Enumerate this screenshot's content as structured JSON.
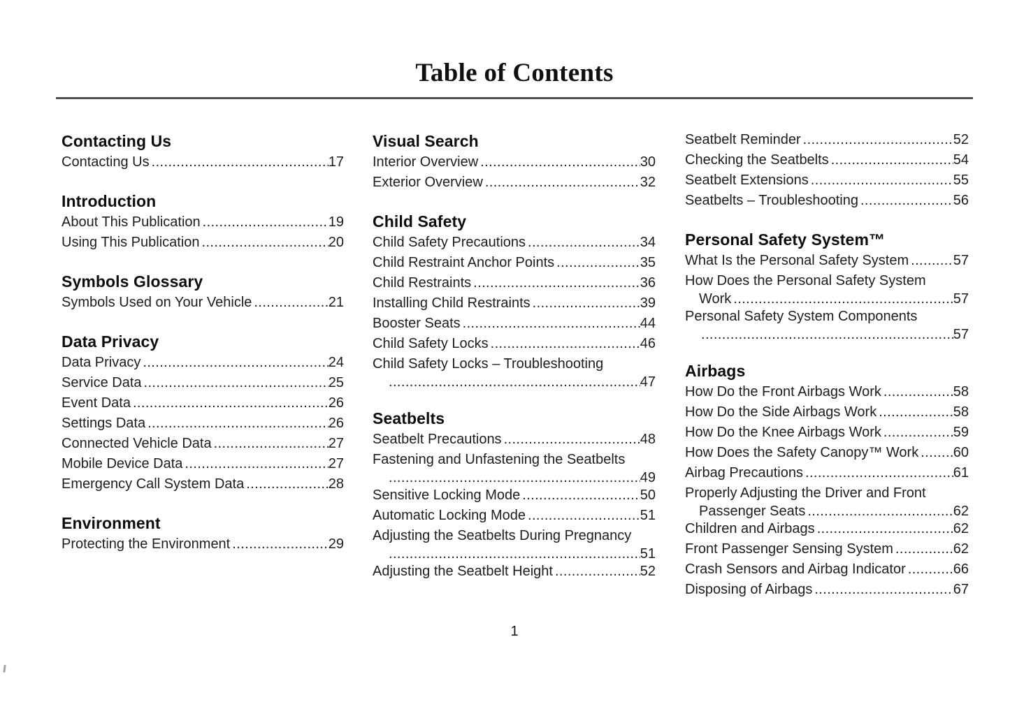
{
  "page": {
    "title": "Table of Contents",
    "page_number": "1"
  },
  "toc": {
    "columns": [
      {
        "sections": [
          {
            "heading": "Contacting Us",
            "entries": [
              {
                "label": "Contacting Us",
                "page": "17"
              }
            ]
          },
          {
            "heading": "Introduction",
            "entries": [
              {
                "label": "About This Publication",
                "page": "19"
              },
              {
                "label": "Using This Publication",
                "page": "20"
              }
            ]
          },
          {
            "heading": "Symbols Glossary",
            "entries": [
              {
                "label": "Symbols Used on Your Vehicle",
                "page": "21"
              }
            ]
          },
          {
            "heading": "Data Privacy",
            "entries": [
              {
                "label": "Data Privacy",
                "page": "24"
              },
              {
                "label": "Service Data",
                "page": "25"
              },
              {
                "label": "Event Data",
                "page": "26"
              },
              {
                "label": "Settings Data",
                "page": "26"
              },
              {
                "label": "Connected Vehicle Data",
                "page": "27"
              },
              {
                "label": "Mobile Device Data",
                "page": "27"
              },
              {
                "label": "Emergency Call System Data",
                "page": "28"
              }
            ]
          },
          {
            "heading": "Environment",
            "entries": [
              {
                "label": "Protecting the Environment",
                "page": "29"
              }
            ]
          }
        ]
      },
      {
        "sections": [
          {
            "heading": "Visual Search",
            "entries": [
              {
                "label": "Interior Overview",
                "page": "30"
              },
              {
                "label": "Exterior Overview",
                "page": "32"
              }
            ]
          },
          {
            "heading": "Child Safety",
            "entries": [
              {
                "label": "Child Safety Precautions",
                "page": "34"
              },
              {
                "label": "Child Restraint Anchor Points",
                "page": "35"
              },
              {
                "label": "Child Restraints",
                "page": "36"
              },
              {
                "label": "Installing Child Restraints",
                "page": "39"
              },
              {
                "label": "Booster Seats",
                "page": "44"
              },
              {
                "label": "Child Safety Locks",
                "page": "46"
              },
              {
                "label": "Child Safety Locks – Troubleshooting",
                "page": "47",
                "wrap": true
              }
            ]
          },
          {
            "heading": "Seatbelts",
            "entries": [
              {
                "label": "Seatbelt Precautions",
                "page": "48"
              },
              {
                "label": "Fastening and Unfastening the Seatbelts",
                "page": "49",
                "wrap": true
              },
              {
                "label": "Sensitive Locking Mode",
                "page": "50"
              },
              {
                "label": "Automatic Locking Mode",
                "page": "51"
              },
              {
                "label": "Adjusting the Seatbelts During Pregnancy",
                "page": "51",
                "wrap": true
              },
              {
                "label": "Adjusting the Seatbelt Height",
                "page": "52"
              }
            ]
          }
        ]
      },
      {
        "sections": [
          {
            "heading": "",
            "entries": [
              {
                "label": "Seatbelt Reminder",
                "page": "52"
              },
              {
                "label": "Checking the Seatbelts",
                "page": "54"
              },
              {
                "label": "Seatbelt Extensions",
                "page": "55"
              },
              {
                "label": "Seatbelts – Troubleshooting",
                "page": "56"
              }
            ]
          },
          {
            "heading": "Personal Safety System™",
            "entries": [
              {
                "label": "What Is the Personal Safety System",
                "page": "57"
              },
              {
                "label": "How Does the Personal Safety System",
                "label2": "Work",
                "page": "57",
                "wrap": true
              },
              {
                "label": "Personal Safety System Components",
                "page": "57",
                "wrap": true
              }
            ]
          },
          {
            "heading": "Airbags",
            "entries": [
              {
                "label": "How Do the Front Airbags Work",
                "page": "58"
              },
              {
                "label": "How Do the Side Airbags Work",
                "page": "58"
              },
              {
                "label": "How Do the Knee Airbags Work",
                "page": "59"
              },
              {
                "label": "How Does the Safety Canopy™ Work",
                "page": "60"
              },
              {
                "label": "Airbag Precautions",
                "page": "61"
              },
              {
                "label": "Properly Adjusting the Driver and Front",
                "label2": "Passenger Seats",
                "page": "62",
                "wrap": true
              },
              {
                "label": "Children and Airbags",
                "page": "62"
              },
              {
                "label": "Front Passenger Sensing System",
                "page": "62"
              },
              {
                "label": "Crash Sensors and Airbag Indicator",
                "page": "66"
              },
              {
                "label": "Disposing of Airbags",
                "page": "67"
              }
            ]
          }
        ]
      }
    ]
  }
}
